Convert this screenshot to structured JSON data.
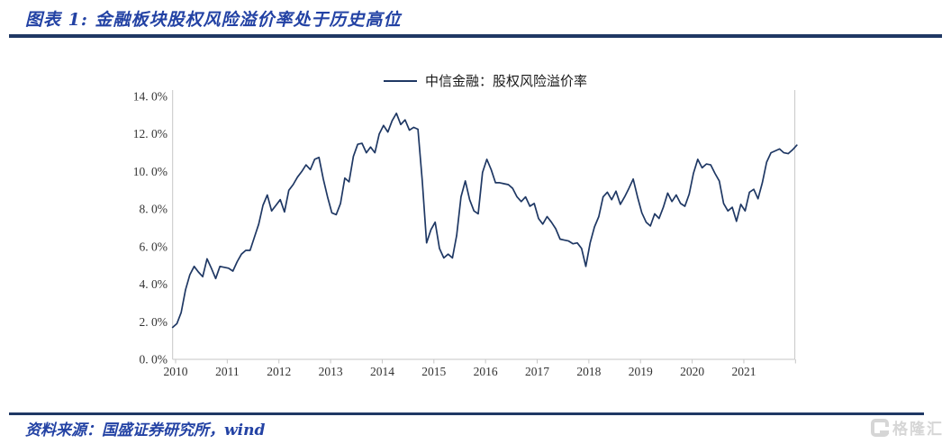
{
  "header": {
    "title": "图表 1: 金融板块股权风险溢价率处于历史高位"
  },
  "footer": {
    "source": "资料来源：国盛证券研究所，wind",
    "watermark": "格隆汇"
  },
  "colors": {
    "title_blue": "#2342A4",
    "rule_navy": "#1F3864",
    "line_navy": "#1F3864",
    "axis_gray": "#C6C6C6",
    "tick_label": "#333333",
    "watermark_gray": "#D6D6D6"
  },
  "chart_data": {
    "type": "line",
    "legend": "中信金融：股权风险溢价率",
    "legend_position": "top-center",
    "grid": false,
    "ylabel": "",
    "xlabel": "",
    "ylim": [
      0,
      14
    ],
    "y_ticks": [
      "0. 0%",
      "2. 0%",
      "4. 0%",
      "6. 0%",
      "8. 0%",
      "10. 0%",
      "12. 0%",
      "14. 0%"
    ],
    "x_ticks": [
      "2010",
      "2011",
      "2012",
      "2013",
      "2014",
      "2015",
      "2016",
      "2017",
      "2018",
      "2019",
      "2020",
      "2021"
    ],
    "series_start": "2010-01",
    "series_freq": "monthly",
    "series_unit": "%",
    "values": [
      1.7,
      1.9,
      2.5,
      3.7,
      4.5,
      4.95,
      4.65,
      4.4,
      5.35,
      4.85,
      4.3,
      4.95,
      4.9,
      4.85,
      4.7,
      5.2,
      5.6,
      5.8,
      5.8,
      6.5,
      7.2,
      8.2,
      8.75,
      7.9,
      8.2,
      8.5,
      7.85,
      9.0,
      9.3,
      9.7,
      10.0,
      10.35,
      10.1,
      10.65,
      10.75,
      9.6,
      8.65,
      7.8,
      7.7,
      8.3,
      9.65,
      9.45,
      10.8,
      11.45,
      11.5,
      11.0,
      11.3,
      11.0,
      12.0,
      12.45,
      12.1,
      12.7,
      13.1,
      12.5,
      12.75,
      12.2,
      12.35,
      12.25,
      9.5,
      6.2,
      6.9,
      7.3,
      5.9,
      5.4,
      5.6,
      5.4,
      6.6,
      8.65,
      9.5,
      8.5,
      7.9,
      7.75,
      9.95,
      10.65,
      10.1,
      9.4,
      9.4,
      9.35,
      9.3,
      9.1,
      8.65,
      8.4,
      8.65,
      8.15,
      8.3,
      7.5,
      7.2,
      7.6,
      7.3,
      6.95,
      6.4,
      6.35,
      6.3,
      6.15,
      6.2,
      5.9,
      4.95,
      6.2,
      7.05,
      7.6,
      8.65,
      8.9,
      8.5,
      8.95,
      8.25,
      8.65,
      9.1,
      9.6,
      8.65,
      7.8,
      7.3,
      7.1,
      7.75,
      7.5,
      8.1,
      8.85,
      8.4,
      8.75,
      8.3,
      8.15,
      8.8,
      9.9,
      10.65,
      10.2,
      10.4,
      10.35,
      9.9,
      9.5,
      8.3,
      7.9,
      8.1,
      7.35,
      8.25,
      7.9,
      8.9,
      9.05,
      8.55,
      9.4,
      10.5,
      11.0,
      11.1,
      11.2,
      11.0,
      10.95,
      11.15,
      11.4
    ]
  }
}
